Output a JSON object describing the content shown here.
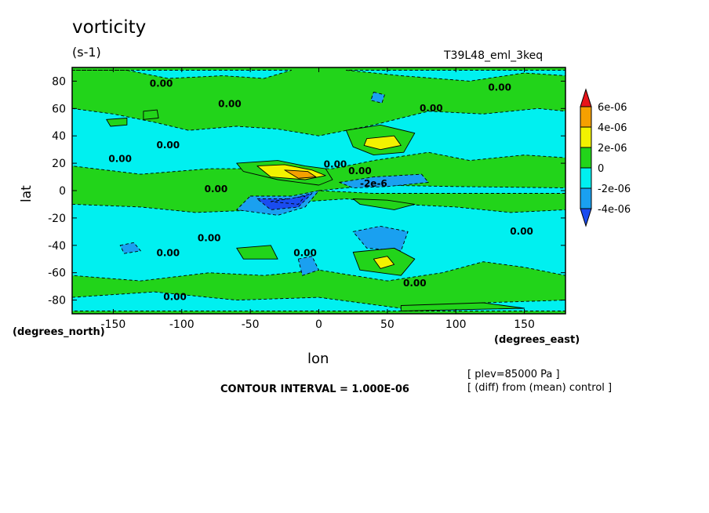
{
  "chart_data": {
    "type": "heatmap",
    "title": "vorticity",
    "units": "(s-1)",
    "run_name": "T39L48_eml_3keq",
    "xlabel": "lon",
    "ylabel": "lat",
    "x_units": "(degrees_east)",
    "y_units": "(degrees_north)",
    "xlim": [
      -180,
      180
    ],
    "ylim": [
      -90,
      90
    ],
    "x_ticks": [
      -150,
      -100,
      -50,
      0,
      50,
      100,
      150
    ],
    "y_ticks": [
      80,
      60,
      40,
      20,
      0,
      -20,
      -40,
      -60,
      -80
    ],
    "x_tick_labels": [
      "-150",
      "-100",
      "-50",
      "0",
      "50",
      "100",
      "150"
    ],
    "y_tick_labels": [
      "80",
      "60",
      "40",
      "20",
      "0",
      "-20",
      "-40",
      "-60",
      "-80"
    ],
    "colorbar": {
      "labels": [
        "6e-06",
        "4e-06",
        "2e-06",
        "0",
        "-2e-06",
        "-4e-06"
      ],
      "bins": [
        {
          "range": "> 6e-06",
          "color": "#e8141a"
        },
        {
          "range": "4e-06 to 6e-06",
          "color": "#f5a000"
        },
        {
          "range": "2e-06 to 4e-06",
          "color": "#f2f200"
        },
        {
          "range": "0 to 2e-06",
          "color": "#22d41a"
        },
        {
          "range": "-2e-06 to 0",
          "color": "#00f0f0"
        },
        {
          "range": "-4e-06 to -2e-06",
          "color": "#1aa0f0"
        },
        {
          "range": "< -4e-06",
          "color": "#1a4cf0"
        }
      ]
    },
    "contour_labels": [
      {
        "text": "0.00",
        "lon": -115,
        "lat": 78
      },
      {
        "text": "0.00",
        "lon": -65,
        "lat": 63
      },
      {
        "text": "0.00",
        "lon": 132,
        "lat": 75
      },
      {
        "text": "0.00",
        "lon": 82,
        "lat": 60
      },
      {
        "text": "0.00",
        "lon": -110,
        "lat": 33
      },
      {
        "text": "0.00",
        "lon": -145,
        "lat": 23
      },
      {
        "text": "0.00",
        "lon": 12,
        "lat": 19
      },
      {
        "text": "0.00",
        "lon": 30,
        "lat": 14
      },
      {
        "text": "0.00",
        "lon": -75,
        "lat": 1
      },
      {
        "text": "-2e-6",
        "lon": 40,
        "lat": 5
      },
      {
        "text": "0.00",
        "lon": -80,
        "lat": -35
      },
      {
        "text": "0.00",
        "lon": -110,
        "lat": -46
      },
      {
        "text": "0.00",
        "lon": -10,
        "lat": -46
      },
      {
        "text": "0.00",
        "lon": 148,
        "lat": -30
      },
      {
        "text": "0.00",
        "lon": 70,
        "lat": -68
      },
      {
        "text": "0.00",
        "lon": -105,
        "lat": -78
      }
    ],
    "regions": [
      {
        "value": -1,
        "points": [
          [
            -180,
            60
          ],
          [
            -150,
            56
          ],
          [
            -120,
            50
          ],
          [
            -95,
            44
          ],
          [
            -60,
            47
          ],
          [
            -30,
            45
          ],
          [
            0,
            40
          ],
          [
            40,
            48
          ],
          [
            80,
            58
          ],
          [
            120,
            56
          ],
          [
            160,
            60
          ],
          [
            180,
            58
          ],
          [
            180,
            24
          ],
          [
            150,
            26
          ],
          [
            110,
            22
          ],
          [
            80,
            28
          ],
          [
            40,
            22
          ],
          [
            10,
            16
          ],
          [
            -30,
            16
          ],
          [
            -80,
            16
          ],
          [
            -130,
            12
          ],
          [
            -180,
            18
          ]
        ]
      },
      {
        "value": -1,
        "points": [
          [
            -180,
            88
          ],
          [
            -140,
            88
          ],
          [
            -110,
            82
          ],
          [
            -70,
            84
          ],
          [
            -40,
            82
          ],
          [
            -20,
            88
          ],
          [
            -180,
            88
          ]
        ]
      },
      {
        "value": -1,
        "points": [
          [
            20,
            88
          ],
          [
            60,
            84
          ],
          [
            110,
            80
          ],
          [
            150,
            86
          ],
          [
            180,
            84
          ],
          [
            180,
            88
          ],
          [
            20,
            88
          ]
        ]
      },
      {
        "value": -1,
        "points": [
          [
            -180,
            -10
          ],
          [
            -130,
            -12
          ],
          [
            -90,
            -16
          ],
          [
            -40,
            -14
          ],
          [
            -10,
            -8
          ],
          [
            20,
            -6
          ],
          [
            60,
            -10
          ],
          [
            100,
            -12
          ],
          [
            140,
            -16
          ],
          [
            180,
            -14
          ],
          [
            180,
            -62
          ],
          [
            150,
            -56
          ],
          [
            120,
            -52
          ],
          [
            90,
            -60
          ],
          [
            50,
            -66
          ],
          [
            0,
            -58
          ],
          [
            -40,
            -62
          ],
          [
            -80,
            -60
          ],
          [
            -130,
            -66
          ],
          [
            -180,
            -62
          ]
        ]
      },
      {
        "value": -1,
        "points": [
          [
            -180,
            -78
          ],
          [
            -120,
            -74
          ],
          [
            -60,
            -80
          ],
          [
            0,
            -78
          ],
          [
            60,
            -86
          ],
          [
            120,
            -82
          ],
          [
            180,
            -80
          ],
          [
            180,
            -88
          ],
          [
            -180,
            -88
          ]
        ]
      },
      {
        "value": -1,
        "points": [
          [
            0,
            0
          ],
          [
            40,
            4
          ],
          [
            100,
            3
          ],
          [
            180,
            2
          ],
          [
            180,
            -2
          ],
          [
            100,
            -2
          ],
          [
            40,
            -2
          ]
        ]
      },
      {
        "value": -2,
        "points": [
          [
            -50,
            -4
          ],
          [
            -20,
            -4
          ],
          [
            0,
            0
          ],
          [
            -10,
            -12
          ],
          [
            -30,
            -18
          ],
          [
            -60,
            -14
          ]
        ]
      },
      {
        "value": -2,
        "points": [
          [
            15,
            6
          ],
          [
            40,
            10
          ],
          [
            75,
            12
          ],
          [
            80,
            6
          ],
          [
            50,
            3
          ],
          [
            25,
            2
          ]
        ]
      },
      {
        "value": -2,
        "points": [
          [
            25,
            -30
          ],
          [
            45,
            -26
          ],
          [
            65,
            -30
          ],
          [
            60,
            -44
          ],
          [
            35,
            -42
          ]
        ]
      },
      {
        "value": -2,
        "points": [
          [
            -15,
            -50
          ],
          [
            -5,
            -48
          ],
          [
            0,
            -58
          ],
          [
            -12,
            -62
          ]
        ]
      },
      {
        "value": -2,
        "points": [
          [
            -145,
            -40
          ],
          [
            -135,
            -38
          ],
          [
            -130,
            -44
          ],
          [
            -142,
            -46
          ]
        ]
      },
      {
        "value": -2,
        "points": [
          [
            40,
            72
          ],
          [
            48,
            70
          ],
          [
            46,
            64
          ],
          [
            38,
            66
          ]
        ]
      },
      {
        "value": -3,
        "points": [
          [
            -45,
            -6
          ],
          [
            -20,
            -6
          ],
          [
            -5,
            -2
          ],
          [
            -15,
            -12
          ],
          [
            -35,
            -14
          ]
        ]
      },
      {
        "value": -3,
        "points": [
          [
            -35,
            -8
          ],
          [
            -10,
            -4
          ],
          [
            -15,
            -10
          ]
        ]
      },
      {
        "value": 1,
        "points": [
          [
            -60,
            20
          ],
          [
            -30,
            22
          ],
          [
            -10,
            18
          ],
          [
            5,
            16
          ],
          [
            10,
            8
          ],
          [
            0,
            4
          ],
          [
            -30,
            8
          ],
          [
            -55,
            14
          ]
        ]
      },
      {
        "value": 1,
        "points": [
          [
            20,
            44
          ],
          [
            45,
            48
          ],
          [
            70,
            42
          ],
          [
            62,
            28
          ],
          [
            40,
            26
          ],
          [
            25,
            32
          ]
        ]
      },
      {
        "value": 1,
        "points": [
          [
            25,
            -6
          ],
          [
            50,
            -7
          ],
          [
            70,
            -10
          ],
          [
            55,
            -14
          ],
          [
            30,
            -10
          ]
        ]
      },
      {
        "value": 1,
        "points": [
          [
            -60,
            -42
          ],
          [
            -35,
            -40
          ],
          [
            -30,
            -50
          ],
          0,
          [
            -55,
            -50
          ]
        ]
      },
      {
        "value": 1,
        "points": [
          [
            25,
            -45
          ],
          [
            55,
            -42
          ],
          [
            70,
            -50
          ],
          [
            60,
            -62
          ],
          [
            30,
            -58
          ]
        ]
      },
      {
        "value": 1,
        "points": [
          [
            -155,
            52
          ],
          [
            -140,
            53
          ],
          [
            -140,
            48
          ],
          [
            -152,
            47
          ]
        ]
      },
      {
        "value": 1,
        "points": [
          [
            -128,
            58
          ],
          [
            -118,
            59
          ],
          [
            -117,
            53
          ],
          [
            -128,
            52
          ]
        ]
      },
      {
        "value": 1,
        "points": [
          [
            60,
            -84
          ],
          [
            120,
            -82
          ],
          [
            150,
            -86
          ],
          [
            60,
            -88
          ]
        ]
      },
      {
        "value": 2,
        "points": [
          [
            -45,
            18
          ],
          [
            -25,
            19
          ],
          [
            -5,
            15
          ],
          [
            5,
            11
          ],
          [
            -10,
            8
          ],
          [
            -35,
            10
          ]
        ]
      },
      {
        "value": 2,
        "points": [
          [
            35,
            38
          ],
          [
            55,
            40
          ],
          [
            60,
            33
          ],
          [
            45,
            30
          ],
          [
            33,
            33
          ]
        ]
      },
      {
        "value": 2,
        "points": [
          [
            40,
            -50
          ],
          [
            50,
            -48
          ],
          [
            55,
            -54
          ],
          [
            45,
            -57
          ]
        ]
      },
      {
        "value": 3,
        "points": [
          [
            -25,
            15
          ],
          [
            -8,
            14
          ],
          [
            -2,
            10
          ],
          [
            -15,
            9
          ]
        ]
      }
    ]
  }
}
